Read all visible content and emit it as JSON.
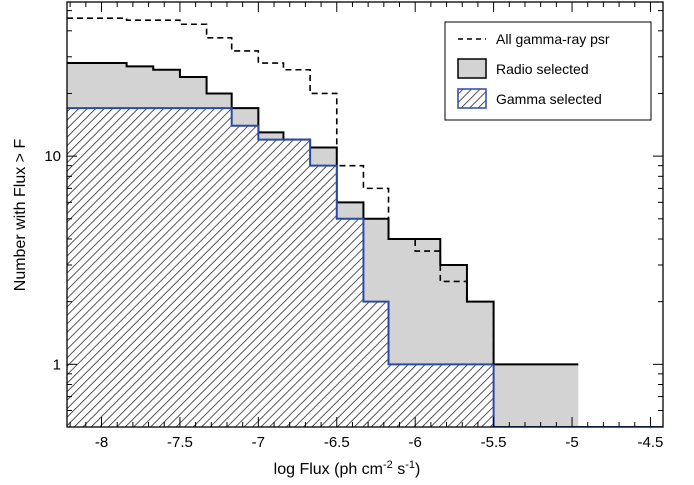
{
  "chart_data": {
    "type": "area",
    "title": "",
    "xlabel": "log Flux  (ph cm",
    "xlabel_sup1": "-2",
    "xlabel_mid": " s",
    "xlabel_sup2": "-1",
    "xlabel_end": ")",
    "ylabel": "Number with Flux > F",
    "xlim": [
      -8.22,
      -4.42
    ],
    "ylim": [
      0.5,
      55
    ],
    "yscale": "log",
    "grid": false,
    "legend_position": "top-right",
    "x_ticks": [
      -8,
      -7.5,
      -7,
      -6.5,
      -6,
      -5.5,
      -5,
      -4.5
    ],
    "x_tick_labels": [
      "-8",
      "-7.5",
      "-7",
      "-6.5",
      "-6",
      "-5.5",
      "-5",
      "-4.5"
    ],
    "y_ticks": [
      1,
      10
    ],
    "y_tick_labels": [
      "1",
      "10"
    ],
    "series": [
      {
        "name": "All gamma-ray psr",
        "style": "dashed",
        "color": "#000000",
        "x": [
          -8.22,
          -7.84,
          -7.5,
          -7.33,
          -7.17,
          -7.0,
          -6.84,
          -6.67,
          -6.5,
          -6.33,
          -6.17,
          -6.0,
          -5.84,
          -5.67,
          -5.5
        ],
        "y": [
          46,
          45,
          43,
          37,
          32,
          28,
          26,
          20,
          9,
          7,
          4,
          3.5,
          2.5,
          2,
          1
        ]
      },
      {
        "name": "Radio selected",
        "style": "filled",
        "color": "#000000",
        "fill": "#d3d3d3",
        "x": [
          -8.22,
          -7.84,
          -7.67,
          -7.5,
          -7.33,
          -7.17,
          -7.0,
          -6.84,
          -6.67,
          -6.5,
          -6.33,
          -6.17,
          -6.0,
          -5.84,
          -5.67,
          -5.5,
          -5.33,
          -4.96
        ],
        "y": [
          28,
          27,
          26,
          24,
          20,
          17,
          13,
          12,
          11,
          6,
          5,
          4,
          4,
          3,
          2,
          1,
          1,
          1
        ]
      },
      {
        "name": "Gamma selected",
        "style": "hatched",
        "color": "#2a4aa8",
        "x": [
          -8.22,
          -7.67,
          -7.33,
          -7.17,
          -7.0,
          -6.84,
          -6.67,
          -6.5,
          -6.33,
          -6.17,
          -6.0,
          -5.84,
          -5.67,
          -5.5,
          -5.33,
          -4.96,
          -4.42
        ],
        "y": [
          17,
          17,
          17,
          14,
          12,
          12,
          9,
          5,
          2,
          1,
          1,
          1,
          1,
          0.5,
          0.5,
          0.5,
          0.5
        ]
      }
    ]
  }
}
